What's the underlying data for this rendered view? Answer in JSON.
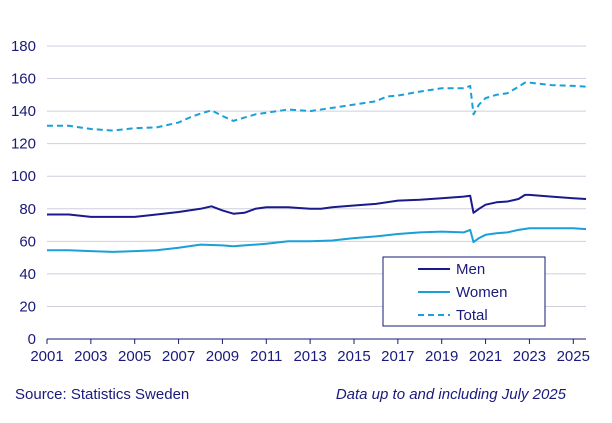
{
  "chart_data": {
    "type": "line",
    "ylim": [
      0,
      180
    ],
    "yticks": [
      0,
      20,
      40,
      60,
      80,
      100,
      120,
      140,
      160,
      180
    ],
    "xlim": [
      2001,
      2025.58
    ],
    "xticks": [
      "2001",
      "2003",
      "2005",
      "2007",
      "2009",
      "2011",
      "2013",
      "2015",
      "2017",
      "2019",
      "2021",
      "2023",
      "2025"
    ],
    "grid": "horizontal",
    "legend_position": "bottom-right",
    "series": [
      {
        "name": "Men",
        "color": "#1a1a8c",
        "dash": "solid",
        "points": [
          [
            2001,
            76.5
          ],
          [
            2002,
            76.5
          ],
          [
            2003,
            75
          ],
          [
            2004,
            75
          ],
          [
            2005,
            75
          ],
          [
            2006,
            76.5
          ],
          [
            2007,
            78
          ],
          [
            2007.5,
            79
          ],
          [
            2008,
            80
          ],
          [
            2008.5,
            81.5
          ],
          [
            2009,
            79
          ],
          [
            2009.5,
            77
          ],
          [
            2010,
            77.5
          ],
          [
            2010.5,
            80
          ],
          [
            2011,
            81
          ],
          [
            2012,
            81
          ],
          [
            2013,
            80
          ],
          [
            2013.5,
            80
          ],
          [
            2014,
            81
          ],
          [
            2015,
            82
          ],
          [
            2016,
            83
          ],
          [
            2017,
            85
          ],
          [
            2018,
            85.5
          ],
          [
            2019,
            86.5
          ],
          [
            2020,
            87.5
          ],
          [
            2020.3,
            88
          ],
          [
            2020.45,
            77.5
          ],
          [
            2020.7,
            80
          ],
          [
            2021,
            82.5
          ],
          [
            2021.5,
            84
          ],
          [
            2022,
            84.5
          ],
          [
            2022.5,
            86
          ],
          [
            2022.8,
            88.5
          ],
          [
            2023,
            88.5
          ],
          [
            2024,
            87.5
          ],
          [
            2025,
            86.5
          ],
          [
            2025.58,
            86
          ]
        ]
      },
      {
        "name": "Women",
        "color": "#1aa0d8",
        "dash": "solid",
        "points": [
          [
            2001,
            54.5
          ],
          [
            2002,
            54.5
          ],
          [
            2003,
            54
          ],
          [
            2004,
            53.5
          ],
          [
            2005,
            54
          ],
          [
            2006,
            54.5
          ],
          [
            2007,
            56
          ],
          [
            2008,
            58
          ],
          [
            2009,
            57.5
          ],
          [
            2009.5,
            57
          ],
          [
            2010,
            57.5
          ],
          [
            2011,
            58.5
          ],
          [
            2012,
            60
          ],
          [
            2013,
            60
          ],
          [
            2014,
            60.5
          ],
          [
            2015,
            62
          ],
          [
            2016,
            63
          ],
          [
            2017,
            64.5
          ],
          [
            2018,
            65.5
          ],
          [
            2019,
            66
          ],
          [
            2020,
            65.5
          ],
          [
            2020.3,
            67
          ],
          [
            2020.45,
            59.5
          ],
          [
            2020.7,
            62
          ],
          [
            2021,
            64
          ],
          [
            2021.5,
            65
          ],
          [
            2022,
            65.5
          ],
          [
            2022.5,
            67
          ],
          [
            2023,
            68
          ],
          [
            2024,
            68
          ],
          [
            2025,
            68
          ],
          [
            2025.58,
            67.5
          ]
        ]
      },
      {
        "name": "Total",
        "color": "#1aa0d8",
        "dash": "dashed",
        "points": [
          [
            2001,
            131
          ],
          [
            2002,
            131
          ],
          [
            2003,
            129
          ],
          [
            2004,
            128
          ],
          [
            2005,
            129.5
          ],
          [
            2006,
            130
          ],
          [
            2007,
            133
          ],
          [
            2007.5,
            136
          ],
          [
            2008,
            138.5
          ],
          [
            2008.5,
            140.5
          ],
          [
            2009,
            137
          ],
          [
            2009.5,
            134
          ],
          [
            2010,
            136
          ],
          [
            2010.5,
            138
          ],
          [
            2011,
            139
          ],
          [
            2012,
            141
          ],
          [
            2013,
            140
          ],
          [
            2014,
            142
          ],
          [
            2015,
            144
          ],
          [
            2016,
            146
          ],
          [
            2016.5,
            149
          ],
          [
            2017,
            149.5
          ],
          [
            2018,
            152
          ],
          [
            2019,
            154
          ],
          [
            2020,
            154
          ],
          [
            2020.3,
            155.5
          ],
          [
            2020.45,
            138
          ],
          [
            2020.7,
            144
          ],
          [
            2021,
            148
          ],
          [
            2021.5,
            150
          ],
          [
            2022,
            151
          ],
          [
            2022.5,
            155
          ],
          [
            2022.8,
            157.5
          ],
          [
            2023,
            157.5
          ],
          [
            2024,
            156
          ],
          [
            2025,
            155.5
          ],
          [
            2025.58,
            155
          ]
        ]
      }
    ]
  },
  "footer": {
    "source": "Source: Statistics Sweden",
    "note": "Data up to and including July 2025"
  }
}
